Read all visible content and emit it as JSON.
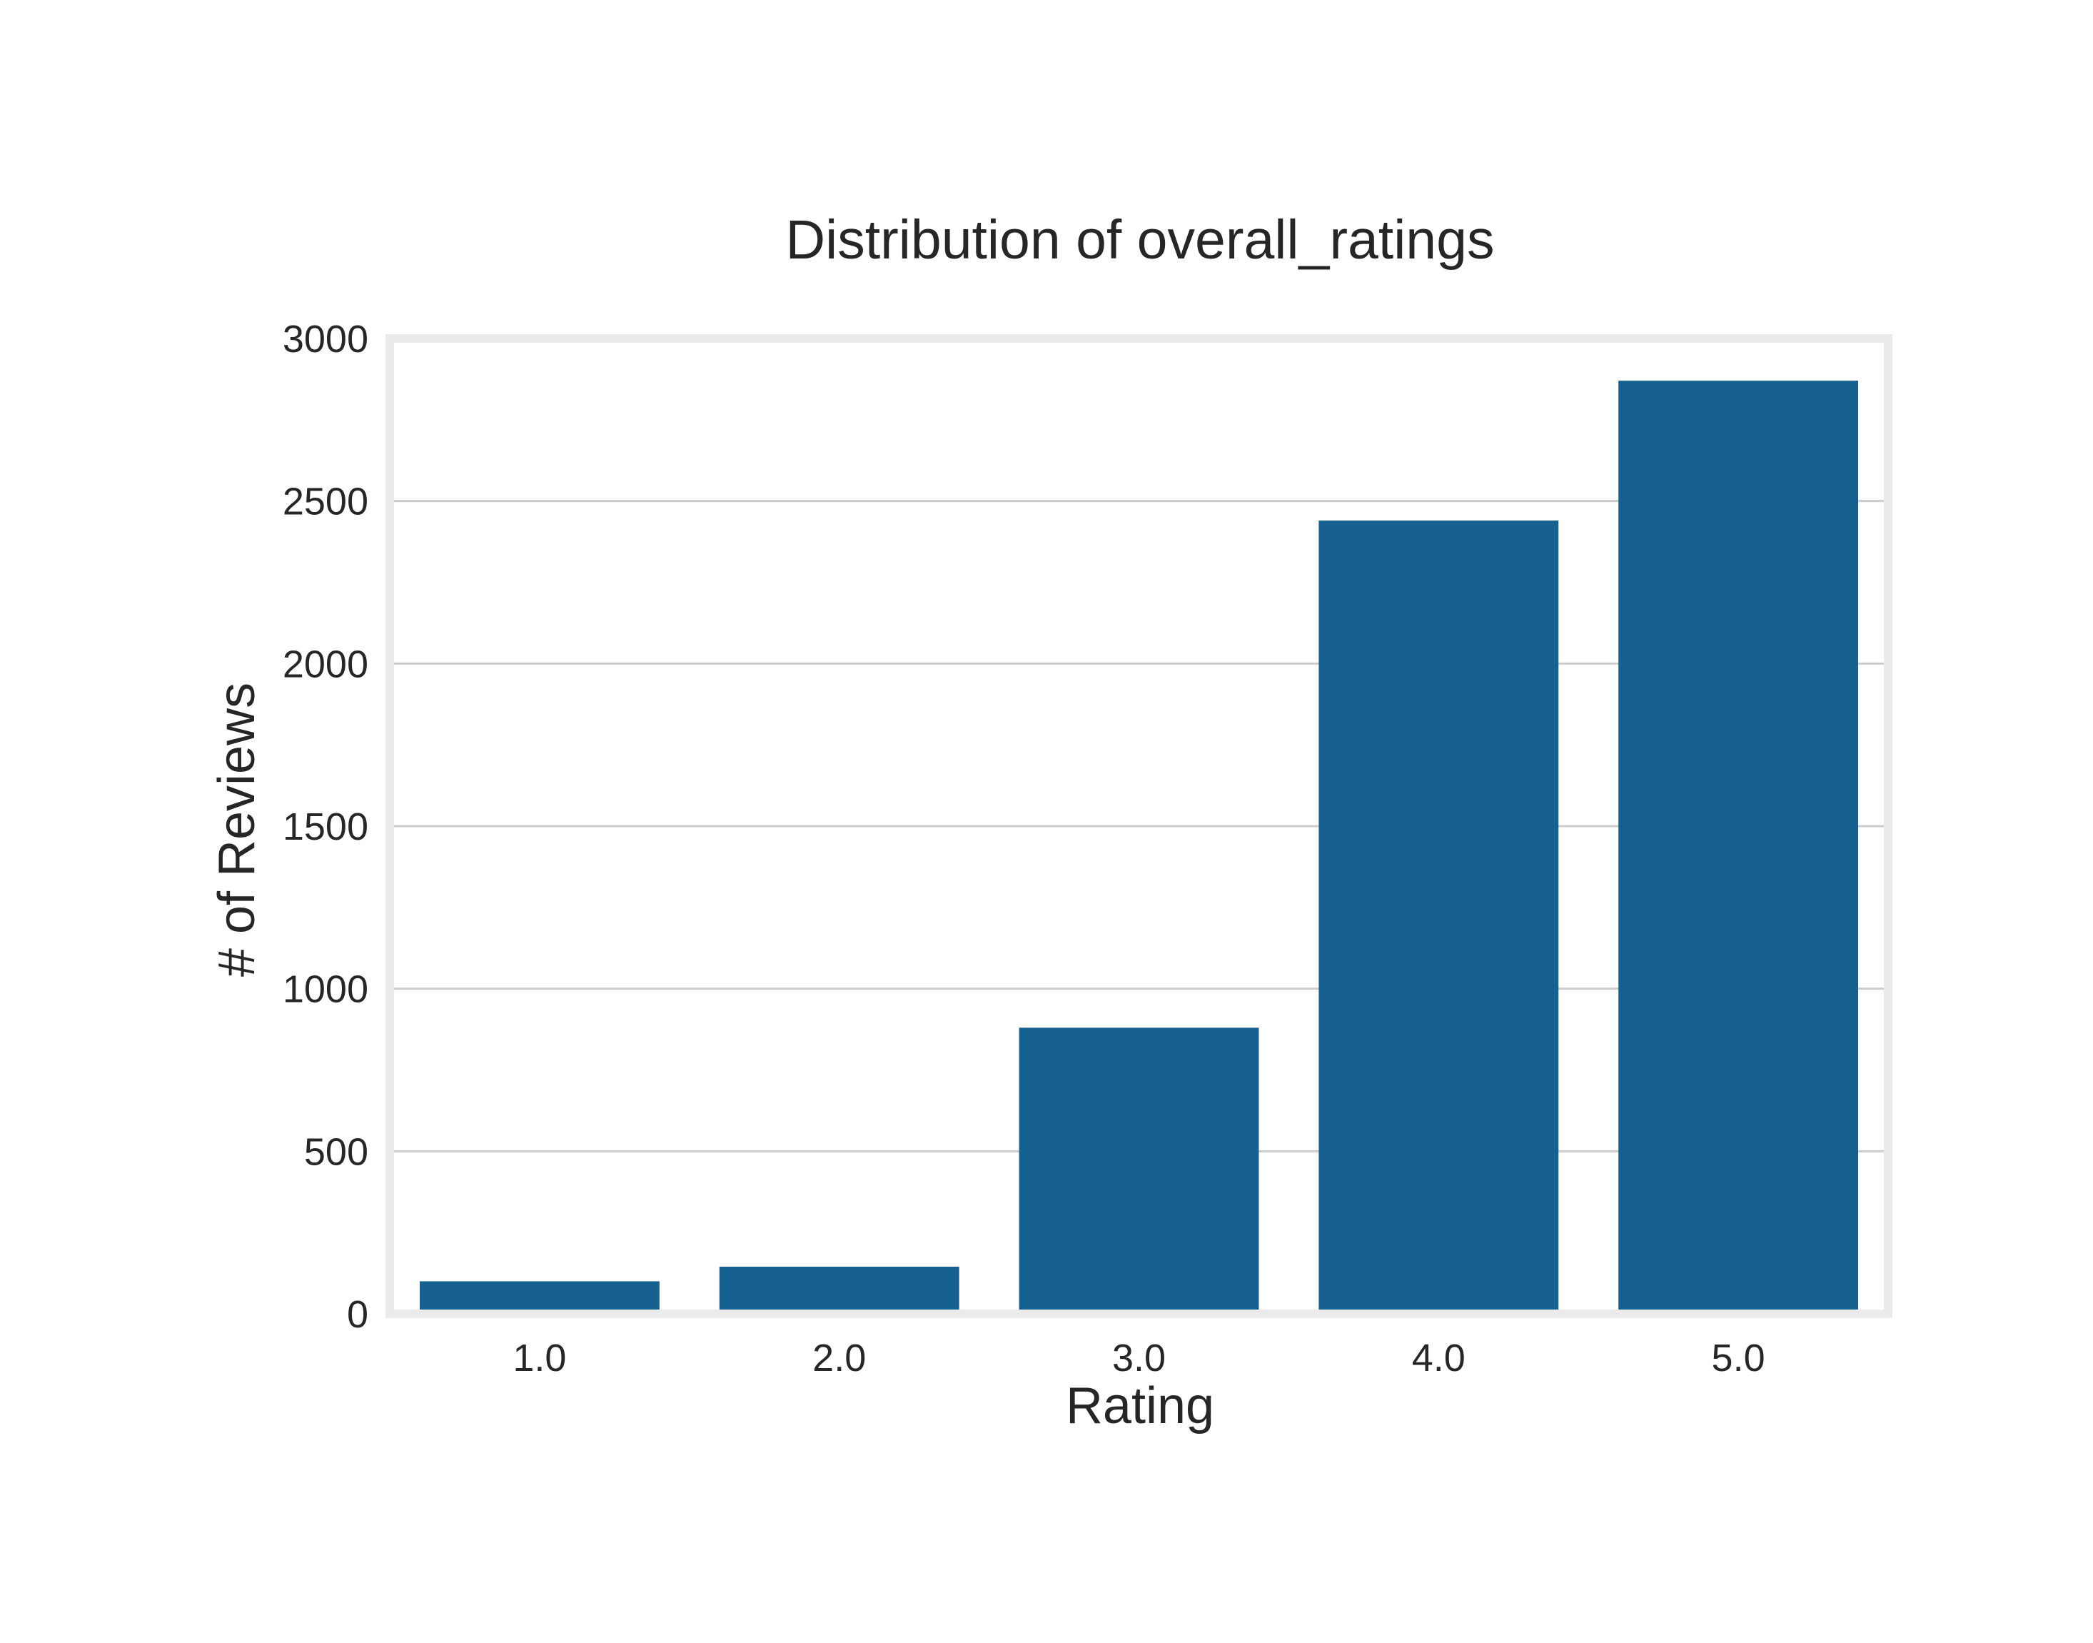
{
  "chart_data": {
    "type": "bar",
    "title": "Distribution of overall_ratings",
    "xlabel": "Rating",
    "ylabel": "# of Reviews",
    "categories": [
      "1.0",
      "2.0",
      "3.0",
      "4.0",
      "5.0"
    ],
    "values": [
      100,
      145,
      880,
      2440,
      2870
    ],
    "ylim": [
      0,
      3000
    ],
    "yticks": [
      0,
      500,
      1000,
      1500,
      2000,
      2500,
      3000
    ],
    "grid": "horizontal",
    "legend": "none",
    "bar_color": "#176190",
    "frame_color": "#ebebeb",
    "grid_color": "#cccccc"
  }
}
